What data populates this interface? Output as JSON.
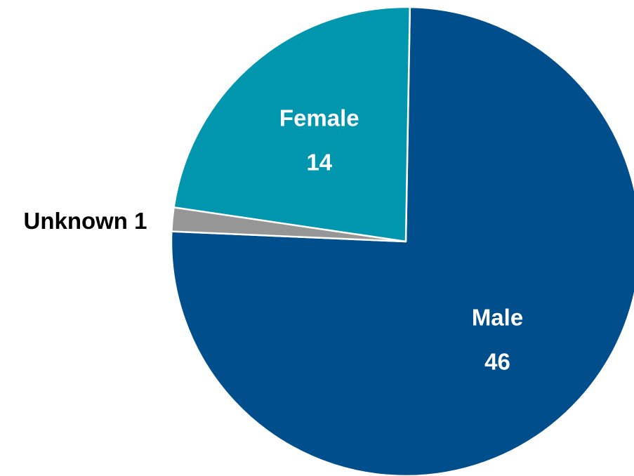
{
  "chart_data": {
    "type": "pie",
    "title": "",
    "slices": [
      {
        "name": "Male",
        "value": 46,
        "color": "#004e8c",
        "label_inside": true,
        "label_color": "#ffffff"
      },
      {
        "name": "Unknown",
        "value": 1,
        "color": "#969696",
        "label_inside": false,
        "label_color": "#000000"
      },
      {
        "name": "Female",
        "value": 14,
        "color": "#0096ae",
        "label_inside": true,
        "label_color": "#ffffff"
      }
    ],
    "legend": "none",
    "data_labels": [
      "Male",
      "46",
      "Unknown 1",
      "Female",
      "14"
    ]
  }
}
